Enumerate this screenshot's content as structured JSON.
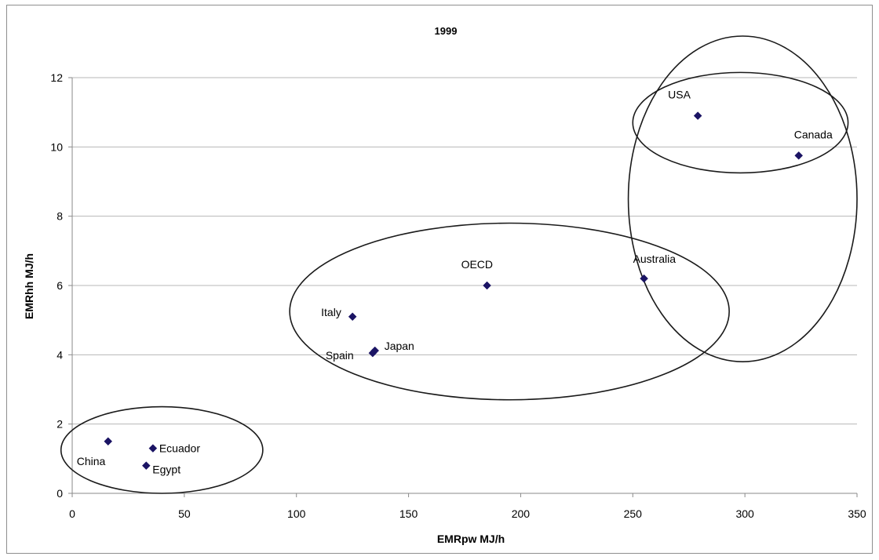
{
  "chart_data": {
    "type": "scatter",
    "title": "1999",
    "xlabel": "EMRpw MJ/h",
    "ylabel": "EMRhh MJ/h",
    "xlim": [
      0,
      350
    ],
    "ylim": [
      0,
      12
    ],
    "xticks": [
      0,
      50,
      100,
      150,
      200,
      250,
      300,
      350
    ],
    "yticks": [
      0,
      2,
      4,
      6,
      8,
      10,
      12
    ],
    "grid": "horizontal",
    "legend": "none",
    "marker": "diamond",
    "marker_color": "#1b1464",
    "points": [
      {
        "label": "China",
        "x": 16,
        "y": 1.5
      },
      {
        "label": "Ecuador",
        "x": 36,
        "y": 1.3
      },
      {
        "label": "Egypt",
        "x": 33,
        "y": 0.8
      },
      {
        "label": "Italy",
        "x": 125,
        "y": 5.1
      },
      {
        "label": "Spain",
        "x": 134,
        "y": 4.05
      },
      {
        "label": "Japan",
        "x": 135,
        "y": 4.12
      },
      {
        "label": "OECD",
        "x": 185,
        "y": 6.0
      },
      {
        "label": "Australia",
        "x": 255,
        "y": 6.2
      },
      {
        "label": "USA",
        "x": 279,
        "y": 10.9
      },
      {
        "label": "Canada",
        "x": 324,
        "y": 9.75
      }
    ],
    "groupings": [
      {
        "shape": "ellipse",
        "center": [
          40,
          1.25
        ],
        "radii": [
          45,
          1.25
        ]
      },
      {
        "shape": "ellipse",
        "center": [
          195,
          5.25
        ],
        "radii": [
          98,
          2.55
        ]
      },
      {
        "shape": "ellipse",
        "center": [
          299,
          8.5
        ],
        "radii": [
          51,
          4.7
        ]
      },
      {
        "shape": "ellipse",
        "center": [
          298,
          10.7
        ],
        "radii": [
          48,
          1.45
        ]
      }
    ]
  }
}
